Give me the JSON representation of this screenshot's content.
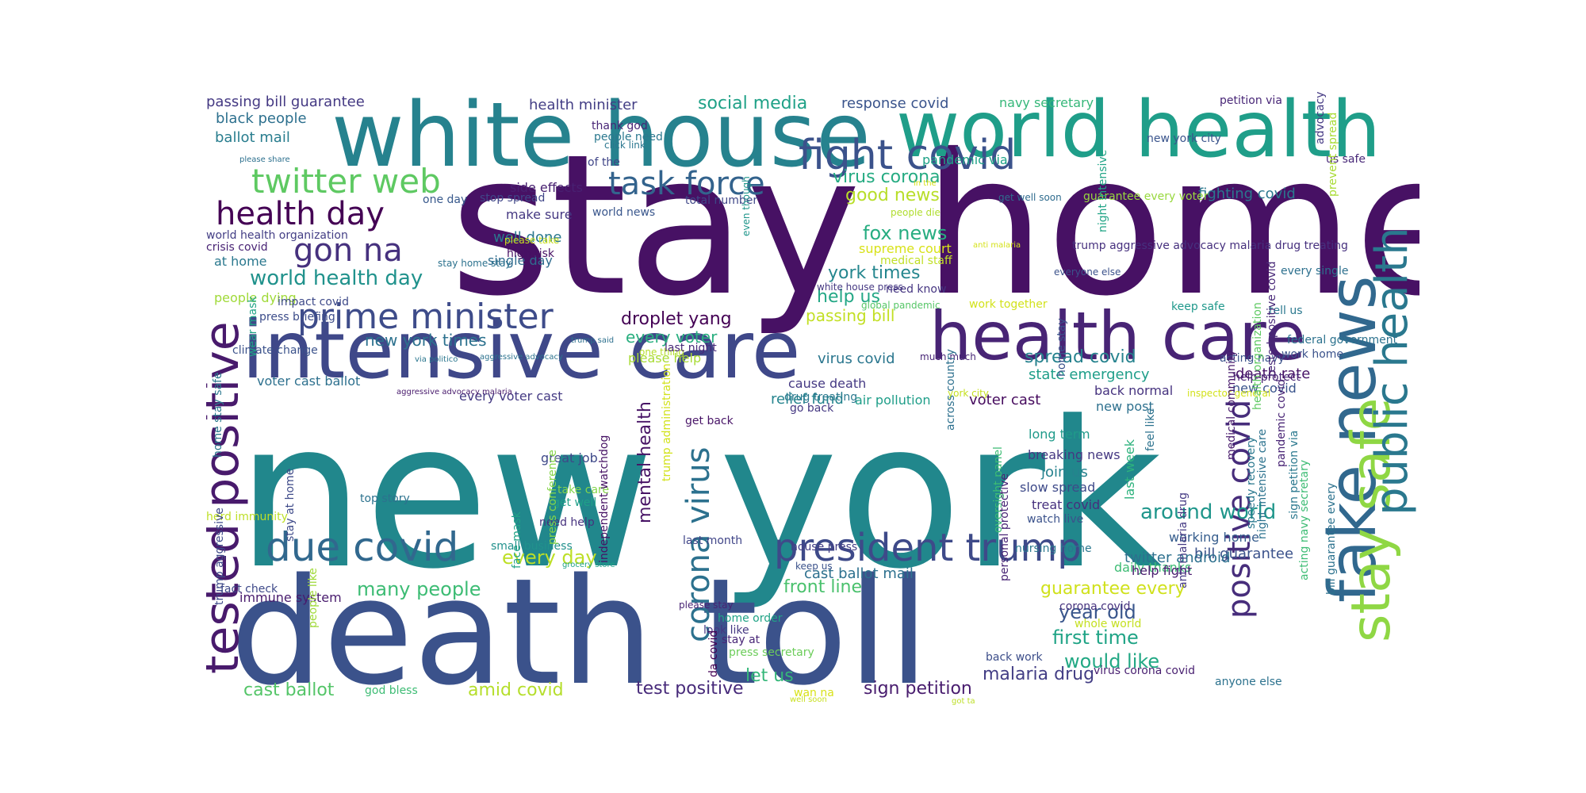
{
  "words": [
    {
      "text": "stay home",
      "color": "#471164",
      "vertical": false
    },
    {
      "text": "new york",
      "color": "#21878c",
      "vertical": false
    },
    {
      "text": "death toll",
      "color": "#3b528b",
      "vertical": false
    },
    {
      "text": "white house",
      "color": "#26828e",
      "vertical": false
    },
    {
      "text": "world health",
      "color": "#1f9e89",
      "vertical": false
    },
    {
      "text": "intensive care",
      "color": "#3f4889",
      "vertical": false
    },
    {
      "text": "health care",
      "color": "#482475",
      "vertical": false
    },
    {
      "text": "fake news",
      "color": "#31688e",
      "vertical": true
    },
    {
      "text": "stay safe",
      "color": "#8fd744",
      "vertical": true
    },
    {
      "text": "public health",
      "color": "#2a788e",
      "vertical": true
    },
    {
      "text": "tested positive",
      "color": "#481a6c",
      "vertical": true
    },
    {
      "text": "president trump",
      "color": "#3e4a89",
      "vertical": false
    },
    {
      "text": "fight covid",
      "color": "#3b528b",
      "vertical": false
    },
    {
      "text": "due covid",
      "color": "#31688e",
      "vertical": false
    },
    {
      "text": "prime minister",
      "color": "#3e4c8a",
      "vertical": false
    },
    {
      "text": "corona virus",
      "color": "#2c718e",
      "vertical": true
    },
    {
      "text": "task force",
      "color": "#33638d",
      "vertical": false
    },
    {
      "text": "twitter web",
      "color": "#5ec962",
      "vertical": false
    },
    {
      "text": "health day",
      "color": "#440154",
      "vertical": false
    },
    {
      "text": "gon na",
      "color": "#46317e",
      "vertical": false
    },
    {
      "text": "positive covid",
      "color": "#472d7b",
      "vertical": true
    },
    {
      "text": "world health day",
      "color": "#20928c",
      "vertical": false
    },
    {
      "text": "many people",
      "color": "#3dbc74",
      "vertical": false
    },
    {
      "text": "every day",
      "color": "#bddf26",
      "vertical": false
    },
    {
      "text": "droplet yang",
      "color": "#440154",
      "vertical": false
    },
    {
      "text": "around world",
      "color": "#1f968b",
      "vertical": false
    },
    {
      "text": "mental health",
      "color": "#471365",
      "vertical": true
    },
    {
      "text": "year old",
      "color": "#39568c",
      "vertical": false
    },
    {
      "text": "first time",
      "color": "#20a486",
      "vertical": false
    },
    {
      "text": "would like",
      "color": "#22a884",
      "vertical": false
    },
    {
      "text": "malaria drug",
      "color": "#433e85",
      "vertical": false
    },
    {
      "text": "sign petition",
      "color": "#481c6e",
      "vertical": false
    },
    {
      "text": "test positive",
      "color": "#472a7a",
      "vertical": false
    },
    {
      "text": "amid covid",
      "color": "#b5de2b",
      "vertical": false
    },
    {
      "text": "cast ballot",
      "color": "#54c568",
      "vertical": false
    },
    {
      "text": "let us",
      "color": "#35b779",
      "vertical": false
    },
    {
      "text": "front line",
      "color": "#4ac16d",
      "vertical": false
    },
    {
      "text": "cast ballot mail",
      "color": "#2d708e",
      "vertical": false
    },
    {
      "text": "guarantee every",
      "color": "#d0e11c",
      "vertical": false
    },
    {
      "text": "good news",
      "color": "#b8de29",
      "vertical": false
    },
    {
      "text": "fox news",
      "color": "#27ad81",
      "vertical": false
    },
    {
      "text": "virus corona",
      "color": "#25ab82",
      "vertical": false
    },
    {
      "text": "york times",
      "color": "#24868e",
      "vertical": false
    },
    {
      "text": "help us",
      "color": "#22a785",
      "vertical": false
    },
    {
      "text": "passing bill",
      "color": "#c2df23",
      "vertical": false
    },
    {
      "text": "new york times",
      "color": "#2c718e",
      "vertical": false
    },
    {
      "text": "every voter",
      "color": "#29af7f",
      "vertical": false
    },
    {
      "text": "spread covid",
      "color": "#26828e",
      "vertical": false
    },
    {
      "text": "state emergency",
      "color": "#1f9e89",
      "vertical": false
    },
    {
      "text": "social media",
      "color": "#1fa187",
      "vertical": false
    },
    {
      "text": "response covid",
      "color": "#3a548c",
      "vertical": false
    },
    {
      "text": "health minister",
      "color": "#433e85",
      "vertical": false
    },
    {
      "text": "passing bill guarantee",
      "color": "#443983",
      "vertical": false
    },
    {
      "text": "black people",
      "color": "#2d708e",
      "vertical": false
    },
    {
      "text": "ballot mail",
      "color": "#287d8e",
      "vertical": false
    },
    {
      "text": "navy secretary",
      "color": "#35b779",
      "vertical": false
    },
    {
      "text": "petition via",
      "color": "#482677",
      "vertical": false
    },
    {
      "text": "new york city",
      "color": "#3a548c",
      "vertical": false
    },
    {
      "text": "us safe",
      "color": "#482878",
      "vertical": false
    },
    {
      "text": "pandemic via",
      "color": "#1fa287",
      "vertical": false
    },
    {
      "text": "fighting covid",
      "color": "#2a788e",
      "vertical": false
    },
    {
      "text": "guarantee every voter",
      "color": "#98d83e",
      "vertical": false
    },
    {
      "text": "total number",
      "color": "#3f4788",
      "vertical": false
    },
    {
      "text": "side effects",
      "color": "#482071",
      "vertical": false
    },
    {
      "text": "well done",
      "color": "#2a788e",
      "vertical": false
    },
    {
      "text": "make sure",
      "color": "#453882",
      "vertical": false
    },
    {
      "text": "stop spread",
      "color": "#404688",
      "vertical": false
    },
    {
      "text": "one day",
      "color": "#38598c",
      "vertical": false
    },
    {
      "text": "single day",
      "color": "#2f6c8e",
      "vertical": false
    },
    {
      "text": "high risk",
      "color": "#471063",
      "vertical": false
    },
    {
      "text": "world health organization",
      "color": "#433e85",
      "vertical": false
    },
    {
      "text": "crisis covid",
      "color": "#482374",
      "vertical": false
    },
    {
      "text": "at home",
      "color": "#2a788e",
      "vertical": false
    },
    {
      "text": "people dying",
      "color": "#a0da39",
      "vertical": false
    },
    {
      "text": "impact covid",
      "color": "#3e4a89",
      "vertical": false
    },
    {
      "text": "press briefing",
      "color": "#3d4d8a",
      "vertical": false
    },
    {
      "text": "climate change",
      "color": "#3b528b",
      "vertical": false
    },
    {
      "text": "voter cast ballot",
      "color": "#2d708e",
      "vertical": false
    },
    {
      "text": "every voter cast",
      "color": "#443a83",
      "vertical": false
    },
    {
      "text": "relief fund",
      "color": "#25848e",
      "vertical": false
    },
    {
      "text": "air pollution",
      "color": "#1f9e89",
      "vertical": false
    },
    {
      "text": "voter cast",
      "color": "#460b5e",
      "vertical": false
    },
    {
      "text": "virus covid",
      "color": "#2a768e",
      "vertical": false
    },
    {
      "text": "please help",
      "color": "#a8db34",
      "vertical": false
    },
    {
      "text": "one thing",
      "color": "#b5de2b",
      "vertical": false
    },
    {
      "text": "supreme court",
      "color": "#d8e219",
      "vertical": false
    },
    {
      "text": "medical staff",
      "color": "#c0df25",
      "vertical": false
    },
    {
      "text": "people die",
      "color": "#b0dd2f",
      "vertical": false
    },
    {
      "text": "need know",
      "color": "#453581",
      "vertical": false
    },
    {
      "text": "global pandemic",
      "color": "#56c667",
      "vertical": false
    },
    {
      "text": "work together",
      "color": "#d2e21b",
      "vertical": false
    },
    {
      "text": "death rate",
      "color": "#481467",
      "vertical": false
    },
    {
      "text": "new covid",
      "color": "#3a548c",
      "vertical": false
    },
    {
      "text": "back normal",
      "color": "#46337f",
      "vertical": false
    },
    {
      "text": "new post",
      "color": "#2d708e",
      "vertical": false
    },
    {
      "text": "last week",
      "color": "#2db27d",
      "vertical": true
    },
    {
      "text": "long term",
      "color": "#1f9a8a",
      "vertical": false
    },
    {
      "text": "breaking news",
      "color": "#453882",
      "vertical": false
    },
    {
      "text": "join us",
      "color": "#26828e",
      "vertical": false
    },
    {
      "text": "slow spread",
      "color": "#3e4a89",
      "vertical": false
    },
    {
      "text": "treat covid",
      "color": "#46307e",
      "vertical": false
    },
    {
      "text": "watch live",
      "color": "#3b528b",
      "vertical": false
    },
    {
      "text": "working home",
      "color": "#365d8d",
      "vertical": false
    },
    {
      "text": "bill guarantee",
      "color": "#3b528b",
      "vertical": false
    },
    {
      "text": "twitter android",
      "color": "#2d708e",
      "vertical": false
    },
    {
      "text": "daily thanks",
      "color": "#3dbc74",
      "vertical": false
    },
    {
      "text": "help fight",
      "color": "#481c6e",
      "vertical": false
    },
    {
      "text": "corona covid",
      "color": "#46327e",
      "vertical": false
    },
    {
      "text": "whole world",
      "color": "#c5e021",
      "vertical": false
    },
    {
      "text": "back work",
      "color": "#3d4e8a",
      "vertical": false
    },
    {
      "text": "virus corona covid",
      "color": "#481f70",
      "vertical": false
    },
    {
      "text": "anyone else",
      "color": "#2c728e",
      "vertical": false
    },
    {
      "text": "nursing home",
      "color": "#2a778e",
      "vertical": false
    },
    {
      "text": "great job",
      "color": "#3e4989",
      "vertical": false
    },
    {
      "text": "take care",
      "color": "#84d44b",
      "vertical": false
    },
    {
      "text": "get well",
      "color": "#1fa088",
      "vertical": false
    },
    {
      "text": "need help",
      "color": "#46327e",
      "vertical": false
    },
    {
      "text": "last month",
      "color": "#404588",
      "vertical": false
    },
    {
      "text": "top story",
      "color": "#2c728e",
      "vertical": false
    },
    {
      "text": "small business",
      "color": "#21918c",
      "vertical": false
    },
    {
      "text": "face mask",
      "color": "#20a386",
      "vertical": true
    },
    {
      "text": "fact check",
      "color": "#3e4989",
      "vertical": false
    },
    {
      "text": "immune system",
      "color": "#481b6d",
      "vertical": false
    },
    {
      "text": "herd immunity",
      "color": "#bddf26",
      "vertical": false
    },
    {
      "text": "god bless",
      "color": "#3dbc74",
      "vertical": false
    },
    {
      "text": "stay at",
      "color": "#482677",
      "vertical": false
    },
    {
      "text": "press secretary",
      "color": "#6ccd5a",
      "vertical": false
    },
    {
      "text": "look like",
      "color": "#453882",
      "vertical": false
    },
    {
      "text": "home order",
      "color": "#20a386",
      "vertical": false
    },
    {
      "text": "please stay",
      "color": "#482374",
      "vertical": false
    },
    {
      "text": "cause death",
      "color": "#443983",
      "vertical": false
    },
    {
      "text": "drug treating",
      "color": "#2a788e",
      "vertical": false
    },
    {
      "text": "go back",
      "color": "#453882",
      "vertical": false
    },
    {
      "text": "get back",
      "color": "#481467",
      "vertical": false
    },
    {
      "text": "last night",
      "color": "#482878",
      "vertical": false
    },
    {
      "text": "of the",
      "color": "#404688",
      "vertical": false
    },
    {
      "text": "people need",
      "color": "#2a788e",
      "vertical": false
    },
    {
      "text": "thank god",
      "color": "#482576",
      "vertical": false
    },
    {
      "text": "click link",
      "color": "#2a768e",
      "vertical": false
    },
    {
      "text": "world news",
      "color": "#39568c",
      "vertical": false
    },
    {
      "text": "please take",
      "color": "#c8e020",
      "vertical": false
    },
    {
      "text": "stay home stay",
      "color": "#2c728e",
      "vertical": false
    },
    {
      "text": "please share",
      "color": "#2d708e",
      "vertical": false
    },
    {
      "text": "in the",
      "color": "#d8e219",
      "vertical": false
    },
    {
      "text": "get well soon",
      "color": "#2f6c8e",
      "vertical": false
    },
    {
      "text": "white house press",
      "color": "#453882",
      "vertical": false
    },
    {
      "text": "anti malaria",
      "color": "#d5e21a",
      "vertical": false
    },
    {
      "text": "every single",
      "color": "#2d708e",
      "vertical": false
    },
    {
      "text": "keep safe",
      "color": "#1f988b",
      "vertical": false
    },
    {
      "text": "tell us",
      "color": "#2a788e",
      "vertical": false
    },
    {
      "text": "federal government",
      "color": "#2c728e",
      "vertical": false
    },
    {
      "text": "work home",
      "color": "#3b528b",
      "vertical": false
    },
    {
      "text": "acting navy",
      "color": "#3b528b",
      "vertical": false
    },
    {
      "text": "help protect",
      "color": "#482475",
      "vertical": false
    },
    {
      "text": "inspector general",
      "color": "#d2e21b",
      "vertical": false
    },
    {
      "text": "york city",
      "color": "#c5e021",
      "vertical": false
    },
    {
      "text": "much much",
      "color": "#482677",
      "vertical": false
    },
    {
      "text": "via politico",
      "color": "#2a768e",
      "vertical": false
    },
    {
      "text": "aggressive advocacy",
      "color": "#2c728e",
      "vertical": false
    },
    {
      "text": "trump said",
      "color": "#2d708e",
      "vertical": false
    },
    {
      "text": "aggressive advocacy malaria",
      "color": "#481a6c",
      "vertical": false
    },
    {
      "text": "grocery store",
      "color": "#1fa287",
      "vertical": false
    },
    {
      "text": "keep us",
      "color": "#3b528b",
      "vertical": false
    },
    {
      "text": "house press",
      "color": "#433e85",
      "vertical": false
    },
    {
      "text": "wan na",
      "color": "#d8e219",
      "vertical": false
    },
    {
      "text": "well soon",
      "color": "#c8e020",
      "vertical": false
    },
    {
      "text": "got ta",
      "color": "#bddf26",
      "vertical": false
    },
    {
      "text": "everyone else",
      "color": "#3b528b",
      "vertical": false
    },
    {
      "text": "trump aggressive advocacy malaria drug treating",
      "color": "#46307e",
      "vertical": false
    },
    {
      "text": "night intensive",
      "color": "#20a486",
      "vertical": true
    },
    {
      "text": "even though",
      "color": "#1f968b",
      "vertical": true
    },
    {
      "text": "prevent spread",
      "color": "#a8db34",
      "vertical": true
    },
    {
      "text": "advocacy malaria",
      "color": "#443983",
      "vertical": true
    },
    {
      "text": "bill guarantee every",
      "color": "#2c728e",
      "vertical": true
    },
    {
      "text": "acting navy secretary",
      "color": "#3dbc74",
      "vertical": true
    },
    {
      "text": "sign petition via",
      "color": "#2a788e",
      "vertical": true
    },
    {
      "text": "pandemic covid",
      "color": "#482475",
      "vertical": true
    },
    {
      "text": "health organization",
      "color": "#5ec962",
      "vertical": true
    },
    {
      "text": "medical community",
      "color": "#481a6c",
      "vertical": true
    },
    {
      "text": "tested positive covid",
      "color": "#482878",
      "vertical": true
    },
    {
      "text": "night intensive care",
      "color": "#2c728e",
      "vertical": true
    },
    {
      "text": "speedy recovery",
      "color": "#2a788e",
      "vertical": true
    },
    {
      "text": "anti malaria drug",
      "color": "#443983",
      "vertical": true
    },
    {
      "text": "feel like",
      "color": "#2c728e",
      "vertical": true
    },
    {
      "text": "home stay",
      "color": "#3b528b",
      "vertical": true
    },
    {
      "text": "oversight panel",
      "color": "#3dbc74",
      "vertical": true
    },
    {
      "text": "across country",
      "color": "#2d708e",
      "vertical": true
    },
    {
      "text": "personal protective",
      "color": "#482475",
      "vertical": true
    },
    {
      "text": "da covid",
      "color": "#440154",
      "vertical": true
    },
    {
      "text": "trump administration",
      "color": "#d2e21b",
      "vertical": true
    },
    {
      "text": "independent watchdog",
      "color": "#471365",
      "vertical": true
    },
    {
      "text": "press conference",
      "color": "#86d549",
      "vertical": true
    },
    {
      "text": "stay at home",
      "color": "#3e4a89",
      "vertical": true
    },
    {
      "text": "people like",
      "color": "#a0da39",
      "vertical": true
    },
    {
      "text": "trump aggressive",
      "color": "#3e4a89",
      "vertical": true
    },
    {
      "text": "home stay safe",
      "color": "#2a788e",
      "vertical": true
    },
    {
      "text": "wear mask",
      "color": "#20a386",
      "vertical": true
    },
    {
      "text": "protective equipment",
      "color": "#4ac16d",
      "vertical": true
    },
    {
      "text": "advocacy malaria drug",
      "color": "#3b528b",
      "vertical": true
    }
  ]
}
